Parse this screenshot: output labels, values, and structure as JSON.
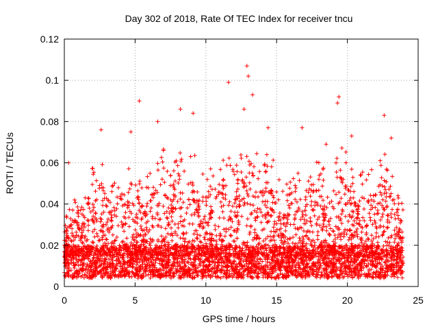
{
  "chart_data": {
    "type": "scatter",
    "title": "Day 302 of 2018, Rate Of TEC Index for receiver tncu",
    "xlabel": "GPS time / hours",
    "ylabel": "ROTI / TECUs",
    "xlim": [
      0,
      25
    ],
    "ylim": [
      0,
      0.12
    ],
    "x_ticks": [
      0,
      5,
      10,
      15,
      20,
      25
    ],
    "y_ticks": [
      0,
      0.02,
      0.04,
      0.06,
      0.08,
      0.1,
      0.12
    ],
    "x_tick_labels": [
      "0",
      "5",
      "10",
      "15",
      "20",
      "25"
    ],
    "y_tick_labels": [
      "0",
      "0.02",
      "0.04",
      "0.06",
      "0.08",
      "0.1",
      "0.12"
    ],
    "grid": true,
    "marker": "plus",
    "color": "#ff0000",
    "x_range_of_data": [
      0,
      23.95
    ],
    "notable_points": [
      {
        "x": 5.3,
        "y": 0.09
      },
      {
        "x": 8.2,
        "y": 0.086
      },
      {
        "x": 11.6,
        "y": 0.099
      },
      {
        "x": 12.9,
        "y": 0.107
      },
      {
        "x": 13.0,
        "y": 0.102
      },
      {
        "x": 13.3,
        "y": 0.093
      },
      {
        "x": 12.7,
        "y": 0.086
      },
      {
        "x": 19.4,
        "y": 0.092
      },
      {
        "x": 19.3,
        "y": 0.089
      },
      {
        "x": 22.6,
        "y": 0.083
      },
      {
        "x": 16.8,
        "y": 0.077
      },
      {
        "x": 14.4,
        "y": 0.077
      },
      {
        "x": 2.6,
        "y": 0.076
      },
      {
        "x": 4.7,
        "y": 0.075
      },
      {
        "x": 6.6,
        "y": 0.08
      },
      {
        "x": 9.1,
        "y": 0.084
      },
      {
        "x": 0.3,
        "y": 0.06
      },
      {
        "x": 20.3,
        "y": 0.073
      },
      {
        "x": 23.1,
        "y": 0.072
      },
      {
        "x": 18.5,
        "y": 0.069
      }
    ],
    "envelope": [
      {
        "x": 0.0,
        "y": 0.03
      },
      {
        "x": 0.5,
        "y": 0.045
      },
      {
        "x": 1.0,
        "y": 0.04
      },
      {
        "x": 1.5,
        "y": 0.05
      },
      {
        "x": 2.0,
        "y": 0.06
      },
      {
        "x": 2.5,
        "y": 0.068
      },
      {
        "x": 3.0,
        "y": 0.045
      },
      {
        "x": 3.5,
        "y": 0.05
      },
      {
        "x": 4.0,
        "y": 0.062
      },
      {
        "x": 4.5,
        "y": 0.06
      },
      {
        "x": 5.0,
        "y": 0.055
      },
      {
        "x": 5.5,
        "y": 0.05
      },
      {
        "x": 6.0,
        "y": 0.055
      },
      {
        "x": 6.5,
        "y": 0.062
      },
      {
        "x": 7.0,
        "y": 0.07
      },
      {
        "x": 7.5,
        "y": 0.055
      },
      {
        "x": 8.0,
        "y": 0.07
      },
      {
        "x": 8.5,
        "y": 0.06
      },
      {
        "x": 9.0,
        "y": 0.07
      },
      {
        "x": 9.5,
        "y": 0.06
      },
      {
        "x": 10.0,
        "y": 0.055
      },
      {
        "x": 10.5,
        "y": 0.06
      },
      {
        "x": 11.0,
        "y": 0.065
      },
      {
        "x": 11.5,
        "y": 0.065
      },
      {
        "x": 12.0,
        "y": 0.06
      },
      {
        "x": 12.5,
        "y": 0.065
      },
      {
        "x": 13.0,
        "y": 0.08
      },
      {
        "x": 13.5,
        "y": 0.07
      },
      {
        "x": 14.0,
        "y": 0.07
      },
      {
        "x": 14.5,
        "y": 0.07
      },
      {
        "x": 15.0,
        "y": 0.055
      },
      {
        "x": 15.5,
        "y": 0.05
      },
      {
        "x": 16.0,
        "y": 0.06
      },
      {
        "x": 16.5,
        "y": 0.06
      },
      {
        "x": 17.0,
        "y": 0.055
      },
      {
        "x": 17.5,
        "y": 0.065
      },
      {
        "x": 18.0,
        "y": 0.06
      },
      {
        "x": 18.5,
        "y": 0.06
      },
      {
        "x": 19.0,
        "y": 0.06
      },
      {
        "x": 19.5,
        "y": 0.07
      },
      {
        "x": 20.0,
        "y": 0.065
      },
      {
        "x": 20.5,
        "y": 0.055
      },
      {
        "x": 21.0,
        "y": 0.055
      },
      {
        "x": 21.5,
        "y": 0.06
      },
      {
        "x": 22.0,
        "y": 0.06
      },
      {
        "x": 22.5,
        "y": 0.07
      },
      {
        "x": 23.0,
        "y": 0.065
      },
      {
        "x": 23.5,
        "y": 0.05
      },
      {
        "x": 23.95,
        "y": 0.04
      }
    ]
  }
}
